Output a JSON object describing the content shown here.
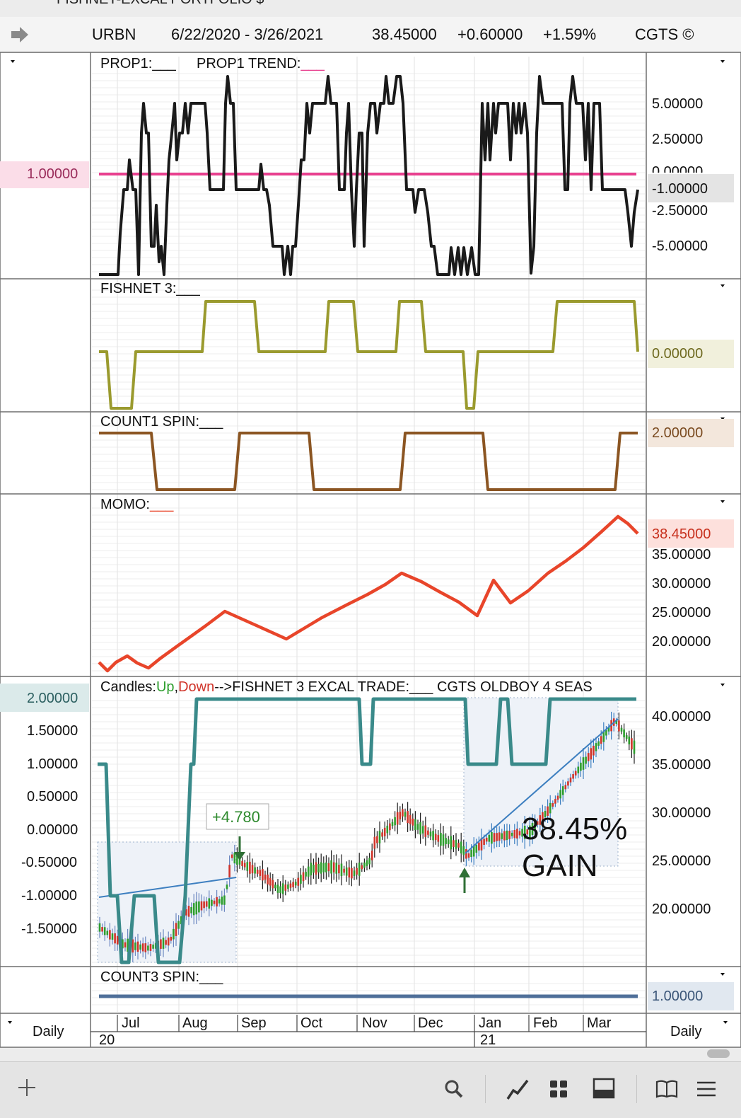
{
  "window": {
    "title": "FISHNET-EXCAL PORTFOLIO $"
  },
  "header": {
    "symbol": "URBN",
    "date_range": "6/22/2020 - 3/26/2021",
    "price": "38.45000",
    "change": "+0.60000",
    "change_pct": "+1.59%",
    "brand": "CGTS ©"
  },
  "panels": {
    "prop1": {
      "label1": "PROP1:___",
      "label2": "PROP1 TREND:",
      "label2_suffix": "___",
      "left_value": "1.00000",
      "ticks": [
        "5.00000",
        "2.50000",
        "0.00000",
        "-1.00000",
        "-2.50000",
        "-5.00000"
      ]
    },
    "fishnet3": {
      "label": "FISHNET 3:___",
      "value": "0.00000"
    },
    "count1": {
      "label": "COUNT1 SPIN:___",
      "value": "2.00000"
    },
    "momo": {
      "label": "MOMO:",
      "label_suffix": "___",
      "value": "38.45000",
      "ticks": [
        "35.00000",
        "30.00000",
        "25.00000",
        "20.00000"
      ]
    },
    "candles": {
      "label_prefix": "Candles:",
      "label_up": "Up",
      "label_comma": ",",
      "label_down": "Down",
      "label_rest": "-->FISHNET 3 EXCAL TRADE:___  CGTS OLDBOY 4 SEAS",
      "left_ticks": [
        "2.00000",
        "1.50000",
        "1.00000",
        "0.50000",
        "0.00000",
        "-0.50000",
        "-1.00000",
        "-1.50000"
      ],
      "right_ticks": [
        "40.00000",
        "35.00000",
        "30.00000",
        "25.00000",
        "20.00000"
      ],
      "trade_tag": "+4.780",
      "gain_pct": "38.45%",
      "gain_word": "GAIN"
    },
    "count3": {
      "label": "COUNT3 SPIN:___",
      "value": "1.00000"
    }
  },
  "time_axis": {
    "months": [
      "Jul",
      "Aug",
      "Sep",
      "Oct",
      "Nov",
      "Dec",
      "Jan",
      "Feb",
      "Mar"
    ],
    "year_start": "20",
    "year_next": "21"
  },
  "footer": {
    "period_left": "Daily",
    "period_right": "Daily"
  },
  "colors": {
    "prop1": "#1a1a1a",
    "trend": "#e8408f",
    "fishnet": "#9a9a2e",
    "count1": "#8b5522",
    "momo": "#e8452a",
    "excal": "#3a8a8a",
    "count3": "#4f6f99",
    "up": "#2e9e2e",
    "down": "#d0342a"
  }
}
